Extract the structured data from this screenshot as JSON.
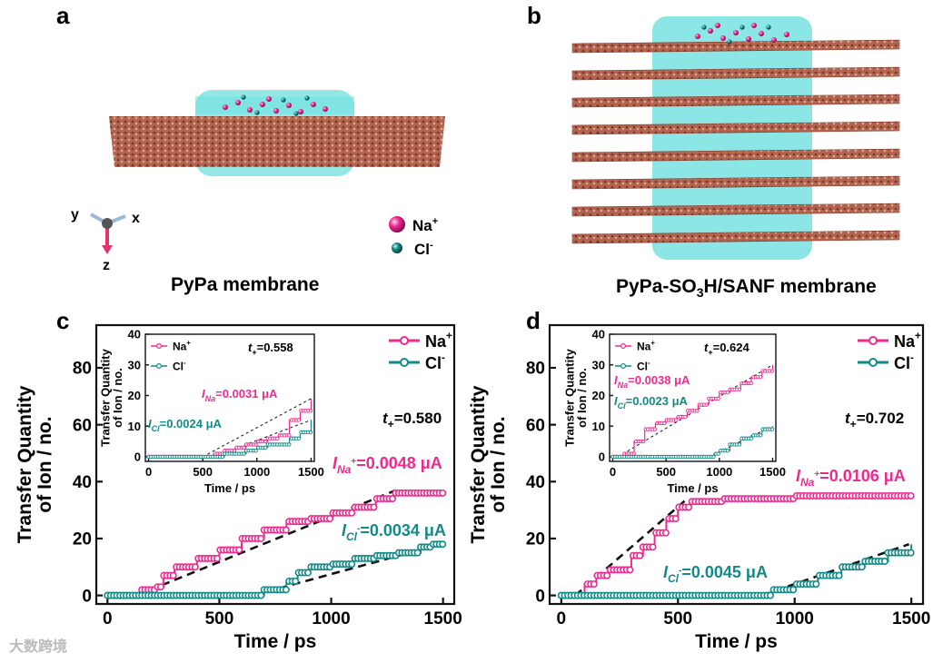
{
  "panels": {
    "a": {
      "letter": "a",
      "caption": "PyPa membrane"
    },
    "b": {
      "letter": "b",
      "caption_main": "PyPa-SO",
      "caption_sub": "3",
      "caption_tail": "H/SANF membrane"
    },
    "c": {
      "letter": "c"
    },
    "d": {
      "letter": "d"
    }
  },
  "axes_legend": {
    "y": "y",
    "x": "x",
    "z": "z"
  },
  "ion_legend": {
    "na": "Na",
    "na_sup": "+",
    "cl": "Cl",
    "cl_sup": "-"
  },
  "colors": {
    "na": "#ee2a8f",
    "cl": "#138a87",
    "water": "#6fe0df",
    "membrane": "#b5644f",
    "dashed": "#111111"
  },
  "watermark": "大数跨境",
  "chart_data": [
    {
      "id": "c",
      "type": "line",
      "title": "",
      "xlabel": "Time / ps",
      "ylabel_line1": "Transfer Quantity",
      "ylabel_line2": "of Ion / no.",
      "xlim": [
        -50,
        1550
      ],
      "ylim": [
        -3,
        95
      ],
      "xticks": [
        "0",
        "500",
        "1000",
        "1500"
      ],
      "yticks": [
        "0",
        "20",
        "40",
        "60",
        "80"
      ],
      "legend": [
        {
          "name": "Na",
          "sup": "+"
        },
        {
          "name": "Cl",
          "sup": "-"
        }
      ],
      "t_plus_label": "t",
      "t_plus_sub": "+",
      "t_plus_value": "=0.580",
      "annotations": {
        "na_sym": "I",
        "na_sub": "Na",
        "na_sup": "+",
        "na_val": "=0.0048 μA",
        "cl_sym": "I",
        "cl_sub": "Cl",
        "cl_sup": "-",
        "cl_val": "=0.0034 μA"
      },
      "series": [
        {
          "name": "Na+",
          "points": [
            [
              0,
              0
            ],
            [
              130,
              0
            ],
            [
              150,
              2
            ],
            [
              220,
              3
            ],
            [
              250,
              7
            ],
            [
              300,
              10
            ],
            [
              400,
              13
            ],
            [
              500,
              16
            ],
            [
              600,
              20
            ],
            [
              700,
              23
            ],
            [
              800,
              26
            ],
            [
              900,
              27
            ],
            [
              1000,
              29
            ],
            [
              1100,
              31
            ],
            [
              1200,
              34
            ],
            [
              1280,
              36
            ],
            [
              1500,
              36
            ]
          ]
        },
        {
          "name": "Cl-",
          "points": [
            [
              0,
              0
            ],
            [
              650,
              0
            ],
            [
              700,
              2
            ],
            [
              800,
              5
            ],
            [
              850,
              8
            ],
            [
              900,
              10
            ],
            [
              1000,
              11
            ],
            [
              1100,
              13
            ],
            [
              1200,
              14
            ],
            [
              1300,
              15
            ],
            [
              1400,
              17
            ],
            [
              1450,
              18
            ],
            [
              1500,
              18
            ]
          ]
        }
      ],
      "fits": [
        {
          "name": "Na fit",
          "points": [
            [
              130,
              0
            ],
            [
              1290,
              37
            ]
          ]
        },
        {
          "name": "Cl fit",
          "points": [
            [
              650,
              0
            ],
            [
              1490,
              18
            ]
          ]
        }
      ],
      "inset": {
        "xlabel": "Time / ps",
        "ylabel_line1": "Transfer Quantity",
        "ylabel_line2": "of Ion / no.",
        "xlim": [
          -30,
          1530
        ],
        "ylim": [
          -1.5,
          40
        ],
        "xticks": [
          "0",
          "500",
          "1000",
          "1500"
        ],
        "yticks": [
          "0",
          "10",
          "20",
          "30",
          "40"
        ],
        "legend": [
          {
            "name": "Na",
            "sup": "+"
          },
          {
            "name": "Cl",
            "sup": "-"
          }
        ],
        "t_plus_label": "t",
        "t_plus_sub": "+",
        "t_plus_value": "=0.558",
        "annotations": {
          "na_sym": "I",
          "na_sub": "Na",
          "na_val": "=0.0031 μA",
          "cl_sym": "I",
          "cl_sub": "Cl",
          "cl_val": "=0.0024 μA"
        },
        "series": [
          {
            "name": "Na+",
            "points": [
              [
                0,
                0
              ],
              [
                500,
                0
              ],
              [
                600,
                1
              ],
              [
                700,
                2
              ],
              [
                800,
                3
              ],
              [
                900,
                4
              ],
              [
                1000,
                5
              ],
              [
                1100,
                6
              ],
              [
                1200,
                7
              ],
              [
                1300,
                12
              ],
              [
                1400,
                15
              ],
              [
                1500,
                19
              ]
            ]
          },
          {
            "name": "Cl-",
            "points": [
              [
                0,
                0
              ],
              [
                600,
                0
              ],
              [
                700,
                1
              ],
              [
                800,
                1
              ],
              [
                900,
                2
              ],
              [
                1000,
                3
              ],
              [
                1100,
                4
              ],
              [
                1200,
                4
              ],
              [
                1300,
                6
              ],
              [
                1400,
                8
              ],
              [
                1500,
                12
              ]
            ]
          }
        ],
        "fits": [
          {
            "name": "Na fit",
            "points": [
              [
                500,
                0
              ],
              [
                1500,
                19
              ]
            ]
          },
          {
            "name": "Cl fit",
            "points": [
              [
                600,
                0
              ],
              [
                1500,
                12
              ]
            ]
          }
        ]
      }
    },
    {
      "id": "d",
      "type": "line",
      "title": "",
      "xlabel": "Time / ps",
      "ylabel_line1": "Transfer Quantity",
      "ylabel_line2": "of Ion / no.",
      "xlim": [
        -50,
        1550
      ],
      "ylim": [
        -3,
        95
      ],
      "xticks": [
        "0",
        "500",
        "1000",
        "1500"
      ],
      "yticks": [
        "0",
        "20",
        "40",
        "60",
        "80"
      ],
      "legend": [
        {
          "name": "Na",
          "sup": "+"
        },
        {
          "name": "Cl",
          "sup": "-"
        }
      ],
      "t_plus_label": "t",
      "t_plus_sub": "+",
      "t_plus_value": "=0.702",
      "annotations": {
        "na_sym": "I",
        "na_sub": "Na",
        "na_sup": "+",
        "na_val": "=0.0106 μA",
        "cl_sym": "I",
        "cl_sub": "Cl",
        "cl_sup": "-",
        "cl_val": "=0.0045 μA"
      },
      "series": [
        {
          "name": "Na+",
          "points": [
            [
              0,
              0
            ],
            [
              60,
              0
            ],
            [
              100,
              4
            ],
            [
              150,
              7
            ],
            [
              200,
              9
            ],
            [
              300,
              14
            ],
            [
              350,
              17
            ],
            [
              400,
              22
            ],
            [
              450,
              27
            ],
            [
              500,
              31
            ],
            [
              550,
              33
            ],
            [
              700,
              34
            ],
            [
              900,
              34
            ],
            [
              1000,
              35
            ],
            [
              1200,
              35
            ],
            [
              1500,
              35
            ]
          ]
        },
        {
          "name": "Cl-",
          "points": [
            [
              0,
              0
            ],
            [
              800,
              0
            ],
            [
              870,
              0
            ],
            [
              900,
              2
            ],
            [
              1000,
              4
            ],
            [
              1100,
              7
            ],
            [
              1200,
              10
            ],
            [
              1300,
              12
            ],
            [
              1400,
              15
            ],
            [
              1500,
              18
            ]
          ]
        }
      ],
      "fits": [
        {
          "name": "Na fit",
          "points": [
            [
              60,
              0
            ],
            [
              540,
              34
            ]
          ]
        },
        {
          "name": "Cl fit",
          "points": [
            [
              860,
              0
            ],
            [
              1490,
              18
            ]
          ]
        }
      ],
      "inset": {
        "xlabel": "Time / ps",
        "ylabel_line1": "Transfer Quantity",
        "ylabel_line2": "of Ion / no.",
        "xlim": [
          -30,
          1530
        ],
        "ylim": [
          -1.5,
          40
        ],
        "xticks": [
          "0",
          "500",
          "1000",
          "1500"
        ],
        "yticks": [
          "0",
          "10",
          "20",
          "30",
          "40"
        ],
        "legend": [
          {
            "name": "Na",
            "sup": "+"
          },
          {
            "name": "Cl",
            "sup": "-"
          }
        ],
        "t_plus_label": "t",
        "t_plus_sub": "+",
        "t_plus_value": "=0.624",
        "annotations": {
          "na_sym": "I",
          "na_sub": "Na",
          "na_val": "=0.0038 μA",
          "cl_sym": "I",
          "cl_sub": "Cl",
          "cl_val": "=0.0023 μA"
        },
        "series": [
          {
            "name": "Na+",
            "points": [
              [
                0,
                0
              ],
              [
                100,
                1
              ],
              [
                200,
                5
              ],
              [
                300,
                9
              ],
              [
                400,
                11
              ],
              [
                500,
                12
              ],
              [
                600,
                13
              ],
              [
                700,
                15
              ],
              [
                800,
                17
              ],
              [
                900,
                19
              ],
              [
                1000,
                21
              ],
              [
                1100,
                22
              ],
              [
                1200,
                24
              ],
              [
                1300,
                26
              ],
              [
                1400,
                28
              ],
              [
                1500,
                30
              ]
            ]
          },
          {
            "name": "Cl-",
            "points": [
              [
                0,
                0
              ],
              [
                800,
                0
              ],
              [
                900,
                0
              ],
              [
                950,
                1
              ],
              [
                1000,
                2
              ],
              [
                1100,
                4
              ],
              [
                1200,
                6
              ],
              [
                1300,
                7
              ],
              [
                1400,
                9
              ],
              [
                1500,
                10
              ]
            ]
          }
        ],
        "fits": [
          {
            "name": "Na fit",
            "points": [
              [
                50,
                0
              ],
              [
                1500,
                30
              ]
            ]
          },
          {
            "name": "Cl fit",
            "points": [
              [
                900,
                0
              ],
              [
                1500,
                10
              ]
            ]
          }
        ]
      }
    }
  ]
}
